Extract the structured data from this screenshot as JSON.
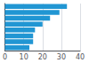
{
  "chart_data": {
    "type": "bar",
    "orientation": "horizontal",
    "categories": [
      null,
      null,
      null,
      null,
      null,
      null,
      null,
      null
    ],
    "values": [
      33,
      29,
      24,
      20,
      16,
      15,
      15,
      13
    ],
    "color": "#2196d3",
    "xlim": [
      0,
      40
    ],
    "xticks": [
      0,
      10,
      20,
      30,
      40
    ],
    "grid": true,
    "tick_labels": "x"
  }
}
